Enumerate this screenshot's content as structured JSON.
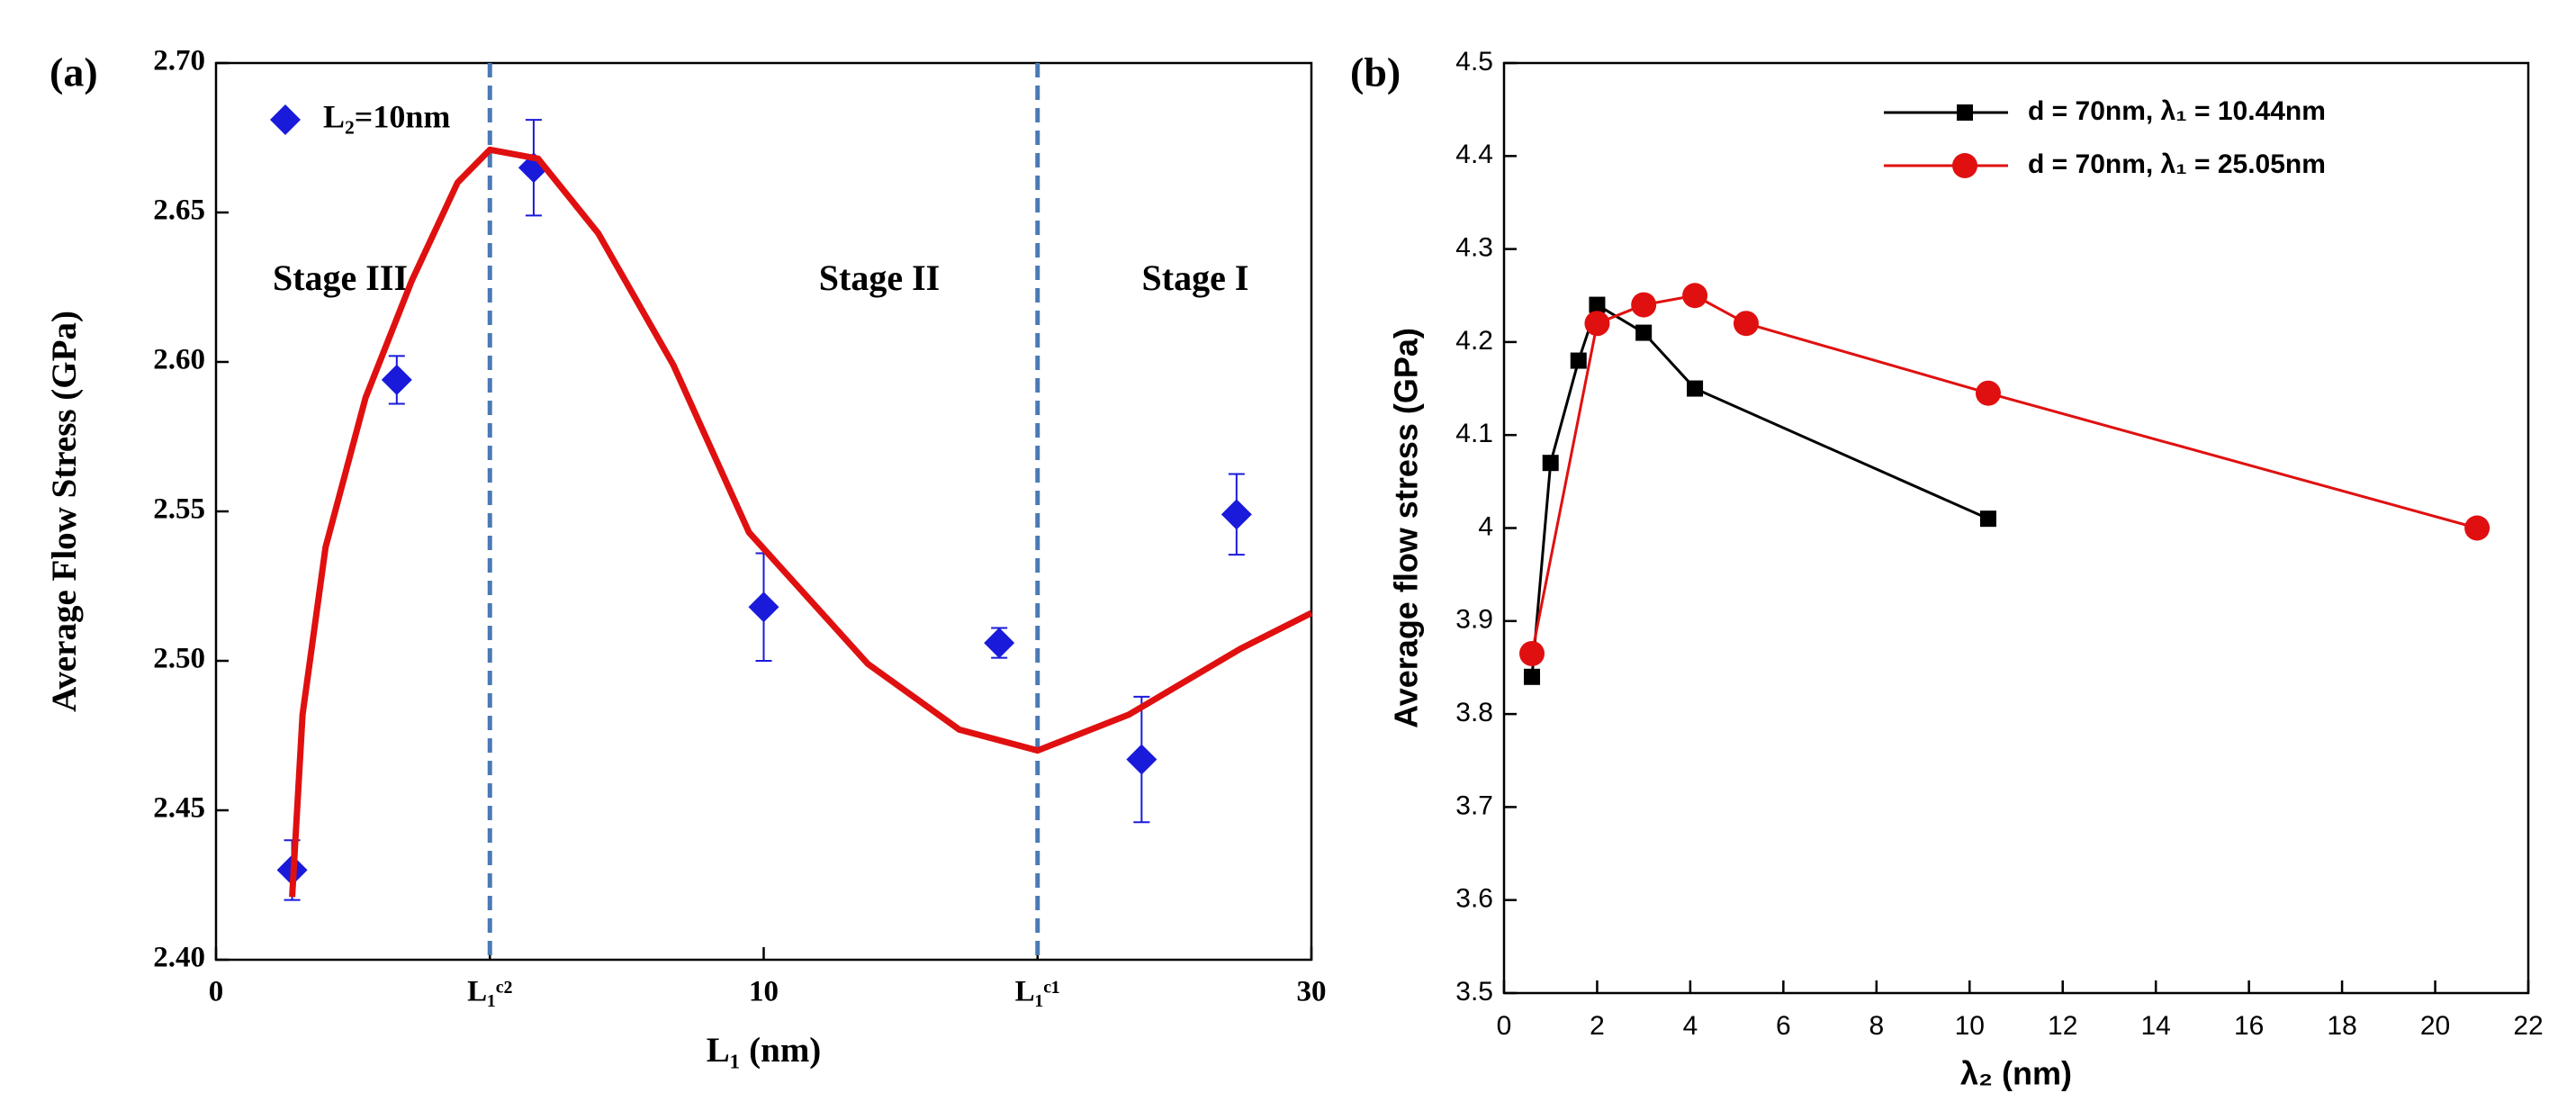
{
  "chart_data": [
    {
      "type": "scatter",
      "label": "(a)",
      "xlabel": "L₁ (nm)",
      "ylabel": "Average Flow Stress (GPa)",
      "xscale": "piecewise",
      "xlim": [
        0,
        30
      ],
      "xticks": [
        0,
        {
          "value": 5,
          "label": "L₁ᶜ²"
        },
        10,
        {
          "value": 15,
          "label": "L₁ᶜ¹"
        },
        30
      ],
      "ylim": [
        2.4,
        2.7
      ],
      "yticks": [
        {
          "value": 2.4,
          "label": "2.40"
        },
        2.45,
        {
          "value": 2.5,
          "label": "2.50"
        },
        2.55,
        {
          "value": 2.6,
          "label": "2.60"
        },
        2.65,
        {
          "value": 2.7,
          "label": "2.70"
        }
      ],
      "reference_lines": {
        "x": [
          5,
          15
        ],
        "color": "#4a7ab5",
        "style": "dashed"
      },
      "annotations": [
        "Stage III",
        "Stage II",
        "Stage I"
      ],
      "legend": "upper left",
      "series": [
        {
          "name": "L₂=10nm",
          "color": "#1a1adb",
          "marker": "diamond",
          "x": [
            1.39,
            3.3,
            5.8,
            10,
            14.3,
            20.7,
            25.9
          ],
          "values": [
            2.43,
            2.594,
            2.665,
            2.518,
            2.506,
            2.467,
            2.549
          ],
          "errors": [
            0.01,
            0.008,
            0.016,
            0.018,
            0.005,
            0.021,
            0.0135
          ]
        },
        {
          "color": "#e01010",
          "mode": "line",
          "x": [
            1.39,
            1.58,
            2.0,
            2.73,
            3.57,
            4.41,
            5,
            5.88,
            6.98,
            8.35,
            9.73,
            11.9,
            13.57,
            15,
            20,
            26.1,
            30
          ],
          "values": [
            2.421,
            2.482,
            2.538,
            2.588,
            2.627,
            2.66,
            2.671,
            2.668,
            2.643,
            2.599,
            2.543,
            2.499,
            2.477,
            2.47,
            2.482,
            2.504,
            2.516
          ]
        }
      ]
    },
    {
      "type": "line",
      "label": "(b)",
      "xlabel": "λ₂ (nm)",
      "ylabel": "Average flow stress (GPa)",
      "xlim": [
        0,
        22
      ],
      "xticks": [
        0,
        2,
        4,
        6,
        8,
        10,
        12,
        14,
        16,
        18,
        20,
        22
      ],
      "ylim": [
        3.5,
        4.5
      ],
      "yticks": [
        3.5,
        3.6,
        3.7,
        3.8,
        3.9,
        4,
        4.1,
        4.2,
        4.3,
        4.4,
        4.5
      ],
      "legend": "upper right",
      "series": [
        {
          "name": "d = 70nm,  λ₁ = 10.44nm",
          "color": "#000000",
          "marker": "square",
          "x": [
            0.6,
            1.0,
            1.6,
            2.0,
            3.0,
            4.1,
            10.4
          ],
          "values": [
            3.84,
            4.07,
            4.18,
            4.24,
            4.21,
            4.15,
            4.01
          ]
        },
        {
          "name": "d = 70nm,  λ₁ = 25.05nm",
          "color": "#e01010",
          "marker": "circle",
          "x": [
            0.6,
            2.0,
            3.0,
            4.1,
            5.2,
            10.4,
            20.9
          ],
          "values": [
            3.865,
            4.22,
            4.24,
            4.25,
            4.22,
            4.145,
            4.0
          ]
        }
      ]
    }
  ]
}
